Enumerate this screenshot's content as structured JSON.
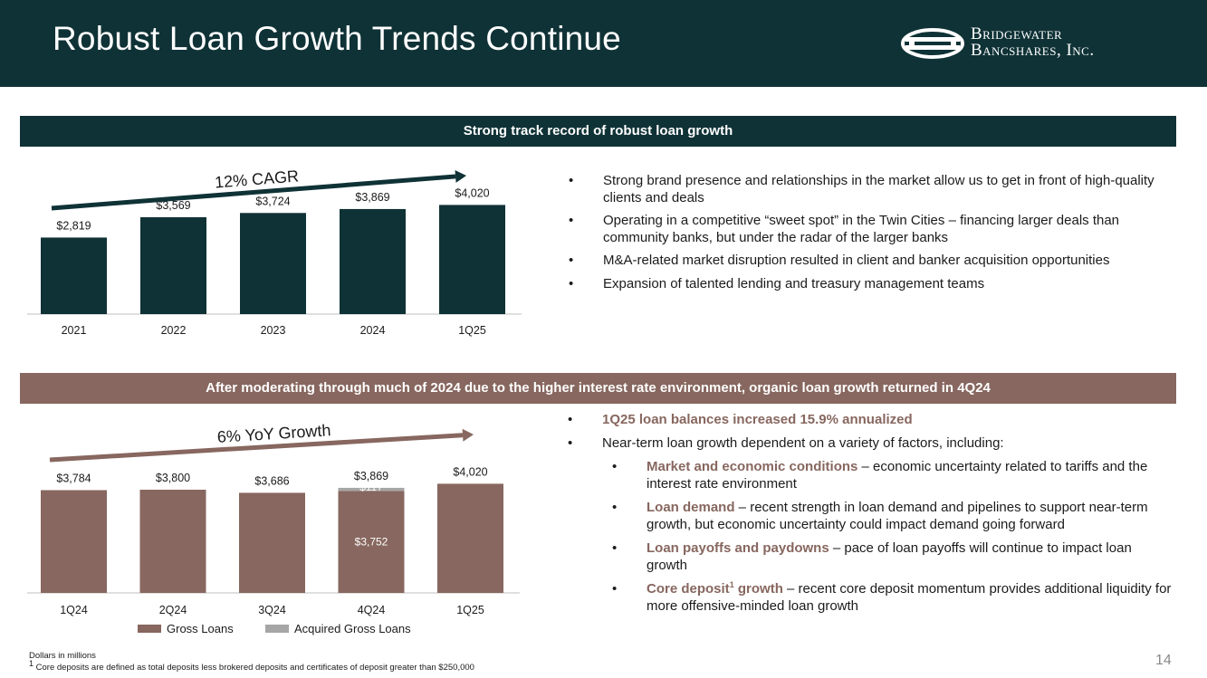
{
  "header": {
    "title": "Robust Loan Growth Trends Continue",
    "logo_line1": "Bridgewater",
    "logo_line2": "Bancshares, Inc."
  },
  "section1": {
    "banner": "Strong track record of robust loan growth",
    "growth_label": "12% CAGR",
    "bullets": [
      "Strong brand presence and relationships in the market allow us to get in front of high-quality clients and deals",
      "Operating in a competitive “sweet spot” in the Twin Cities – financing larger deals than community banks, but under the radar of the larger banks",
      "M&A-related market disruption resulted in client and banker acquisition opportunities",
      "Expansion of talented lending and treasury management teams"
    ]
  },
  "section2": {
    "banner": "After moderating through much of 2024 due to the higher interest rate environment, organic loan growth returned in 4Q24",
    "growth_label": "6% YoY Growth",
    "bullet1": "1Q25 loan balances increased 15.9% annualized",
    "bullet2": "Near-term loan growth dependent on a variety of factors, including:",
    "sub_bullets": [
      {
        "lead": "Market and economic conditions",
        "text": " – economic uncertainty related to tariffs and the interest rate environment"
      },
      {
        "lead": "Loan demand",
        "text": " – recent strength in loan demand and pipelines to support near-term growth, but economic uncertainty could impact demand going forward"
      },
      {
        "lead": "Loan payoffs and paydowns",
        "text": " – pace of loan payoffs will continue to impact loan growth"
      },
      {
        "lead": "Core deposit",
        "sup": "1",
        "lead2": " growth",
        "text": " – recent core deposit momentum provides additional liquidity for more offensive-minded loan growth"
      }
    ],
    "legend": [
      "Gross Loans",
      "Acquired Gross Loans"
    ]
  },
  "footnote": {
    "line1": "Dollars in millions",
    "sup": "1",
    "line2": " Core deposits are defined as total deposits less brokered deposits and certificates of deposit greater than $250,000"
  },
  "page_number": "14",
  "colors": {
    "dark_teal": "#0f3236",
    "mauve": "#87675f",
    "acquired_gray": "#a6a6a6"
  },
  "chart_data": [
    {
      "type": "bar",
      "categories": [
        "2021",
        "2022",
        "2023",
        "2024",
        "1Q25"
      ],
      "values": [
        2819,
        3569,
        3724,
        3869,
        4020
      ],
      "labels": [
        "$2,819",
        "$3,569",
        "$3,724",
        "$3,869",
        "$4,020"
      ],
      "annotation": "12% CAGR",
      "color": "#0f3236",
      "grid": false
    },
    {
      "type": "bar",
      "stacked": true,
      "categories": [
        "1Q24",
        "2Q24",
        "3Q24",
        "4Q24",
        "1Q25"
      ],
      "series": [
        {
          "name": "Gross Loans",
          "values": [
            3784,
            3800,
            3686,
            3752,
            4020
          ],
          "color": "#87675f"
        },
        {
          "name": "Acquired Gross Loans",
          "values": [
            0,
            0,
            0,
            117,
            0
          ],
          "color": "#a6a6a6"
        }
      ],
      "totals": [
        3784,
        3800,
        3686,
        3869,
        4020
      ],
      "total_labels": [
        "$3,784",
        "$3,800",
        "$3,686",
        "$3,869",
        "$4,020"
      ],
      "segment_labels": {
        "4Q24": {
          "Gross Loans": "$3,752",
          "Acquired Gross Loans": "$117"
        }
      },
      "annotation": "6% YoY Growth",
      "legend": "bottom",
      "grid": false
    }
  ]
}
